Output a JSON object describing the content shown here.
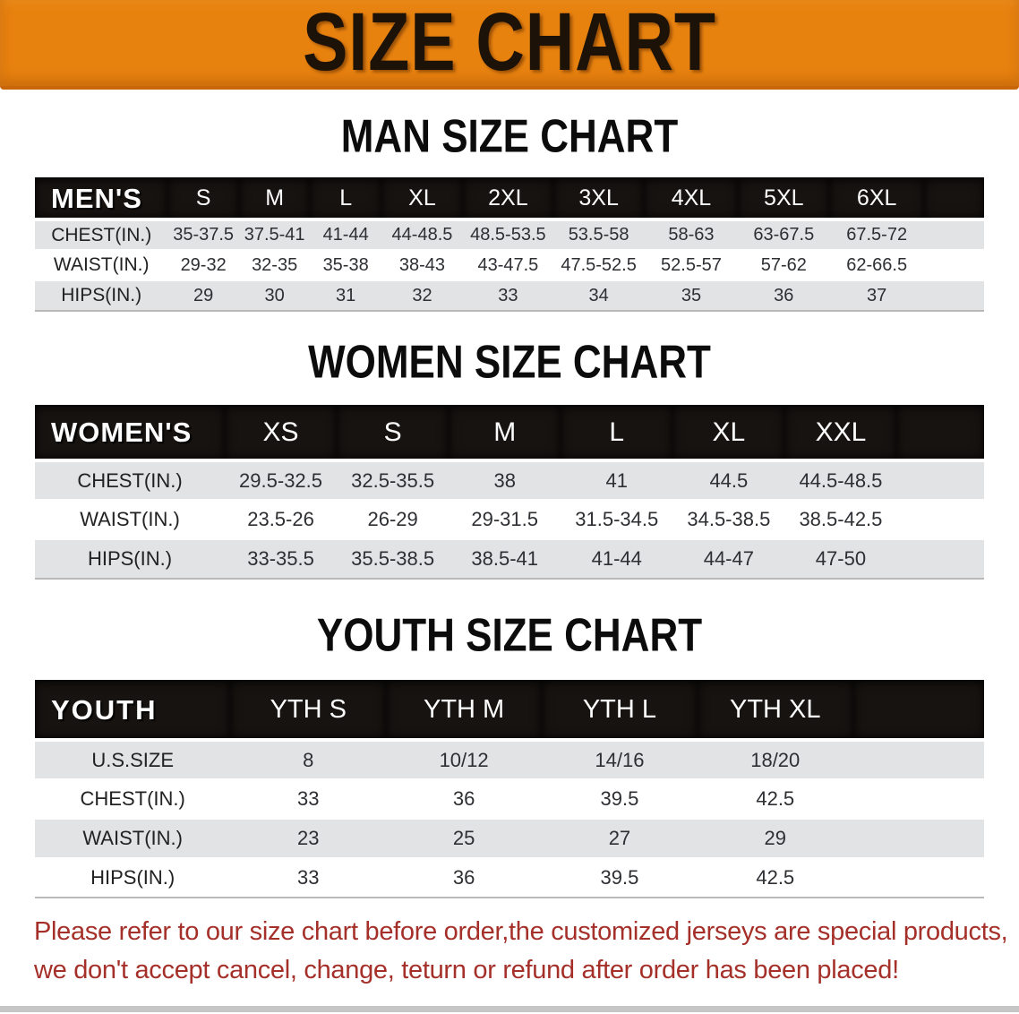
{
  "banner": {
    "title": "SIZE CHART"
  },
  "colors": {
    "banner_bg": "#e8820f",
    "table_header_bg": "#171310",
    "row_alt_bg": "#e2e3e5",
    "notice_text": "#a5302a"
  },
  "sections": [
    {
      "heading": "MAN SIZE CHART",
      "table": {
        "corner": "MEN'S",
        "columns": [
          "S",
          "M",
          "L",
          "XL",
          "2XL",
          "3XL",
          "4XL",
          "5XL",
          "6XL"
        ],
        "rows": [
          {
            "label": "CHEST(IN.)",
            "values": [
              "35-37.5",
              "37.5-41",
              "41-44",
              "44-48.5",
              "48.5-53.5",
              "53.5-58",
              "58-63",
              "63-67.5",
              "67.5-72"
            ]
          },
          {
            "label": "WAIST(IN.)",
            "values": [
              "29-32",
              "32-35",
              "35-38",
              "38-43",
              "43-47.5",
              "47.5-52.5",
              "52.5-57",
              "57-62",
              "62-66.5"
            ]
          },
          {
            "label": "HIPS(IN.)",
            "values": [
              "29",
              "30",
              "31",
              "32",
              "33",
              "34",
              "35",
              "36",
              "37"
            ]
          }
        ]
      }
    },
    {
      "heading": "WOMEN SIZE CHART",
      "table": {
        "corner": "WOMEN'S",
        "columns": [
          "XS",
          "S",
          "M",
          "L",
          "XL",
          "XXL"
        ],
        "rows": [
          {
            "label": "CHEST(IN.)",
            "values": [
              "29.5-32.5",
              "32.5-35.5",
              "38",
              "41",
              "44.5",
              "44.5-48.5"
            ]
          },
          {
            "label": "WAIST(IN.)",
            "values": [
              "23.5-26",
              "26-29",
              "29-31.5",
              "31.5-34.5",
              "34.5-38.5",
              "38.5-42.5"
            ]
          },
          {
            "label": "HIPS(IN.)",
            "values": [
              "33-35.5",
              "35.5-38.5",
              "38.5-41",
              "41-44",
              "44-47",
              "47-50"
            ]
          }
        ]
      }
    },
    {
      "heading": "YOUTH SIZE CHART",
      "table": {
        "corner": "YOUTH",
        "columns": [
          "YTH S",
          "YTH M",
          "YTH L",
          "YTH XL"
        ],
        "rows": [
          {
            "label": "U.S.SIZE",
            "values": [
              "8",
              "10/12",
              "14/16",
              "18/20"
            ]
          },
          {
            "label": "CHEST(IN.)",
            "values": [
              "33",
              "36",
              "39.5",
              "42.5"
            ]
          },
          {
            "label": "WAIST(IN.)",
            "values": [
              "23",
              "25",
              "27",
              "29"
            ]
          },
          {
            "label": "HIPS(IN.)",
            "values": [
              "33",
              "36",
              "39.5",
              "42.5"
            ]
          }
        ]
      }
    }
  ],
  "footnote": {
    "lines": [
      "Please refer to our size chart before order,the customized jerseys are special products,",
      "we don't accept cancel, change, teturn or refund after order has been placed!"
    ]
  }
}
